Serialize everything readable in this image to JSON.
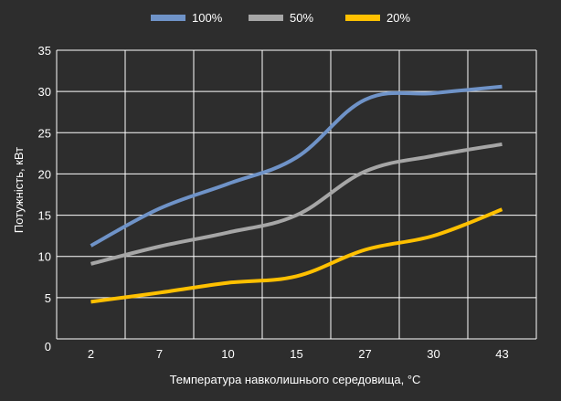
{
  "chart_data": {
    "type": "line",
    "title": "",
    "xlabel": "Температура навколишнього середовища, °C",
    "ylabel": "Потужність, кВт",
    "categories": [
      "2",
      "7",
      "10",
      "15",
      "27",
      "30",
      "43"
    ],
    "ylim": [
      0,
      35
    ],
    "yticks": [
      0,
      5,
      10,
      15,
      20,
      25,
      30,
      35
    ],
    "grid": true,
    "legend_position": "top",
    "series": [
      {
        "name": "100%",
        "color": "#6f93c8",
        "values": [
          11.3,
          15.8,
          18.8,
          22.0,
          29.0,
          29.8,
          30.6
        ]
      },
      {
        "name": "50%",
        "color": "#a6a6a6",
        "values": [
          9.1,
          11.2,
          12.9,
          15.0,
          20.3,
          22.2,
          23.6
        ]
      },
      {
        "name": "20%",
        "color": "#ffc000",
        "values": [
          4.5,
          5.6,
          6.8,
          7.6,
          10.8,
          12.5,
          15.7
        ]
      }
    ]
  }
}
